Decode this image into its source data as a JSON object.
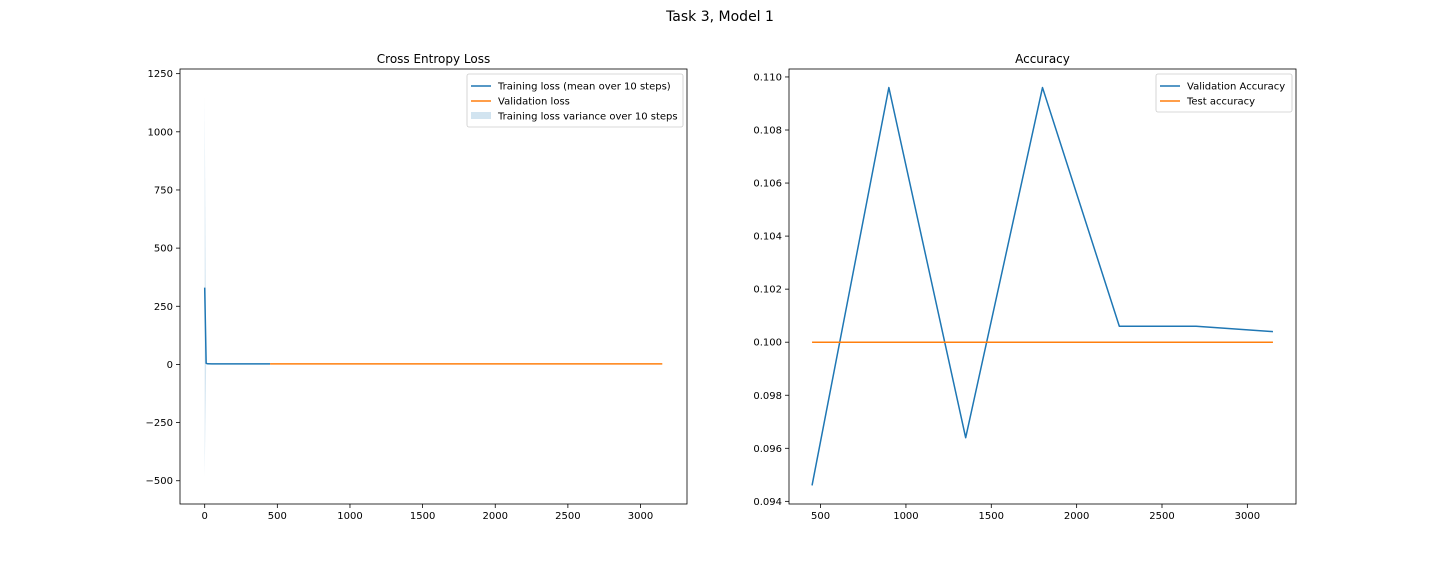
{
  "figure": {
    "title": "Task 3, Model 1"
  },
  "chart_data": [
    {
      "type": "line",
      "title": "Cross Entropy Loss",
      "xlabel": "",
      "ylabel": "",
      "xlim": [
        -170,
        3320
      ],
      "ylim": [
        -600,
        1270
      ],
      "xticks": [
        0,
        500,
        1000,
        1500,
        2000,
        2500,
        3000
      ],
      "yticks": [
        -500,
        -250,
        0,
        250,
        500,
        750,
        1000,
        1250
      ],
      "grid": false,
      "legend": "top-right",
      "series": [
        {
          "name": "Training loss (mean over 10 steps)",
          "color": "#1f77b4",
          "kind": "line",
          "x": [
            0,
            10,
            20,
            50,
            100,
            200,
            450
          ],
          "y": [
            330,
            5,
            2.8,
            2.5,
            2.4,
            2.35,
            2.3
          ]
        },
        {
          "name": "Validation loss",
          "color": "#ff7f0e",
          "kind": "line",
          "x": [
            450,
            900,
            1350,
            1800,
            2250,
            2700,
            3150
          ],
          "y": [
            2.3,
            2.3,
            2.3,
            2.3,
            2.3,
            2.3,
            2.3
          ]
        },
        {
          "name": "Training loss variance over 10 steps",
          "color": "#1f77b4",
          "kind": "band",
          "x": [
            0,
            10
          ],
          "lower": [
            -480,
            0
          ],
          "upper": [
            1150,
            10
          ]
        }
      ]
    },
    {
      "type": "line",
      "title": "Accuracy",
      "xlabel": "",
      "ylabel": "",
      "xlim": [
        315,
        3285
      ],
      "ylim": [
        0.0939,
        0.1103
      ],
      "xticks": [
        500,
        1000,
        1500,
        2000,
        2500,
        3000
      ],
      "yticks": [
        0.094,
        0.096,
        0.098,
        0.1,
        0.102,
        0.104,
        0.106,
        0.108,
        0.11
      ],
      "ytick_labels": [
        "0.094",
        "0.096",
        "0.098",
        "0.100",
        "0.102",
        "0.104",
        "0.106",
        "0.108",
        "0.110"
      ],
      "grid": false,
      "legend": "top-right",
      "series": [
        {
          "name": "Validation Accuracy",
          "color": "#1f77b4",
          "kind": "line",
          "x": [
            450,
            900,
            1350,
            1800,
            2250,
            2700,
            3150
          ],
          "y": [
            0.0946,
            0.1096,
            0.0964,
            0.1096,
            0.1006,
            0.1006,
            0.1004
          ]
        },
        {
          "name": "Test accuracy",
          "color": "#ff7f0e",
          "kind": "line",
          "x": [
            450,
            3150
          ],
          "y": [
            0.1,
            0.1
          ]
        }
      ]
    }
  ]
}
